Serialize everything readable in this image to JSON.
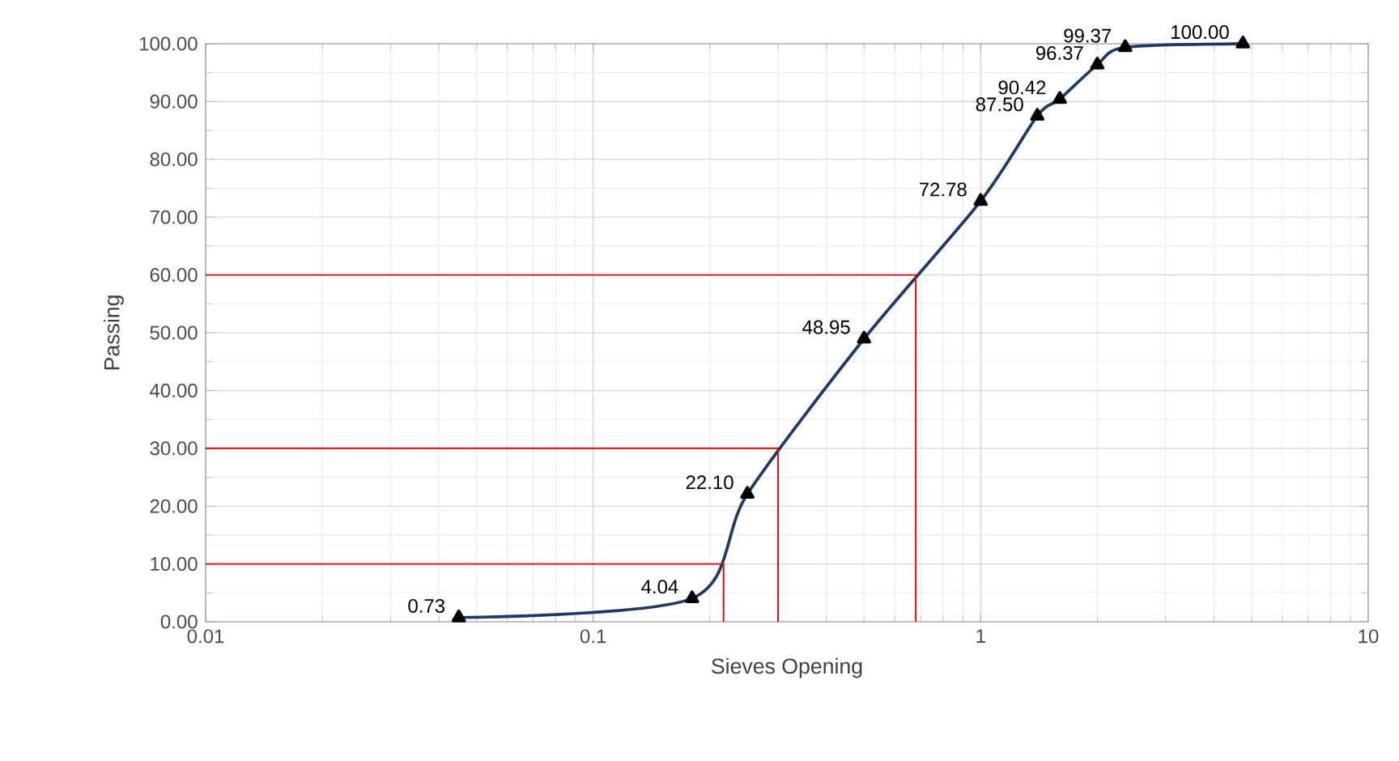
{
  "chart_data": {
    "type": "line",
    "xlabel": "Sieves Opening",
    "ylabel": "Passing",
    "log": "x",
    "grid": true,
    "marker": "triangle",
    "xlim": [
      0.01,
      10
    ],
    "ylim": [
      0,
      100
    ],
    "xticks": [
      0.01,
      0.1,
      1,
      10
    ],
    "yticks": [
      {
        "value": 0,
        "label": "0.00"
      },
      {
        "value": 10,
        "label": "10.00"
      },
      {
        "value": 20,
        "label": "20.00"
      },
      {
        "value": 30,
        "label": "30.00"
      },
      {
        "value": 40,
        "label": "40.00"
      },
      {
        "value": 50,
        "label": "50.00"
      },
      {
        "value": 60,
        "label": "60.00"
      },
      {
        "value": 70,
        "label": "70.00"
      },
      {
        "value": 80,
        "label": "80.00"
      },
      {
        "value": 90,
        "label": "90.00"
      },
      {
        "value": 100,
        "label": "100.00"
      }
    ],
    "series": [
      {
        "color": "#203864",
        "x": [
          0.045,
          0.18,
          0.25,
          0.5,
          1.0,
          1.4,
          1.6,
          2.0,
          2.36,
          4.75
        ],
        "values": [
          0.73,
          4.04,
          22.1,
          48.95,
          72.78,
          87.5,
          90.42,
          96.37,
          99.37,
          100.0
        ],
        "value_labels": [
          "0.73",
          "4.04",
          "22.10",
          "48.95",
          "72.78",
          "87.50",
          "90.42",
          "96.37",
          "99.37",
          "100.00"
        ]
      },
      {
        "color": "#e00000",
        "marker": "none",
        "x": [
          0.01,
          0.217,
          0.217
        ],
        "values": [
          10,
          10,
          0
        ]
      },
      {
        "color": "#e00000",
        "marker": "none",
        "x": [
          0.01,
          0.3,
          0.3
        ],
        "values": [
          30,
          30,
          0
        ]
      },
      {
        "color": "#e00000",
        "marker": "none",
        "x": [
          0.01,
          0.68,
          0.68
        ],
        "values": [
          60,
          60,
          0
        ]
      }
    ]
  }
}
